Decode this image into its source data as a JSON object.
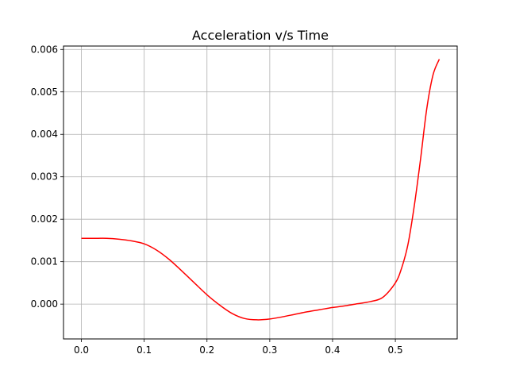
{
  "chart_data": {
    "type": "line",
    "title": "Acceleration v/s Time",
    "xlabel": "",
    "ylabel": "",
    "xlim": [
      -0.0285,
      0.5985
    ],
    "ylim": [
      -0.00082,
      0.00608
    ],
    "xticks": [
      0.0,
      0.1,
      0.2,
      0.3,
      0.4,
      0.5
    ],
    "xtick_labels": [
      "0.0",
      "0.1",
      "0.2",
      "0.3",
      "0.4",
      "0.5"
    ],
    "yticks": [
      0.0,
      0.001,
      0.002,
      0.003,
      0.004,
      0.005,
      0.006
    ],
    "ytick_labels": [
      "0.000",
      "0.001",
      "0.002",
      "0.003",
      "0.004",
      "0.005",
      "0.006"
    ],
    "grid": true,
    "legend": "none",
    "series": [
      {
        "color": "#ff0000",
        "x": [
          0.0,
          0.02,
          0.04,
          0.06,
          0.08,
          0.1,
          0.12,
          0.14,
          0.16,
          0.18,
          0.2,
          0.22,
          0.24,
          0.26,
          0.28,
          0.3,
          0.32,
          0.34,
          0.36,
          0.38,
          0.4,
          0.42,
          0.44,
          0.46,
          0.48,
          0.5,
          0.51,
          0.52,
          0.53,
          0.54,
          0.55,
          0.56,
          0.57
        ],
        "y": [
          0.00155,
          0.00155,
          0.00155,
          0.00153,
          0.00149,
          0.00142,
          0.00127,
          0.00105,
          0.00078,
          0.0005,
          0.00022,
          -2e-05,
          -0.00022,
          -0.00034,
          -0.00037,
          -0.00035,
          -0.0003,
          -0.00024,
          -0.00018,
          -0.00013,
          -8e-05,
          -4e-05,
          1e-05,
          6e-05,
          0.00016,
          0.0005,
          0.00085,
          0.0014,
          0.0023,
          0.0034,
          0.0046,
          0.0054,
          0.00577
        ]
      }
    ]
  }
}
